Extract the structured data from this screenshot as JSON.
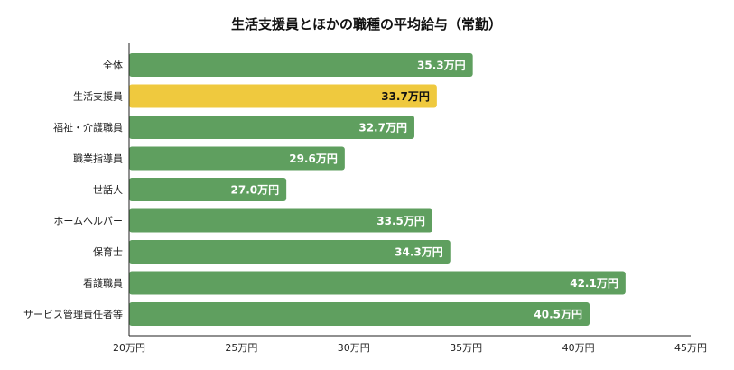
{
  "chart_data": {
    "type": "bar",
    "orientation": "horizontal",
    "title": "生活支援員とほかの職種の平均給与（常勤）",
    "xlabel": "",
    "ylabel": "",
    "xlim": [
      20,
      45
    ],
    "x_ticks": [
      20,
      25,
      30,
      35,
      40,
      45
    ],
    "x_tick_labels": [
      "20万円",
      "25万円",
      "30万円",
      "35万円",
      "40万円",
      "45万円"
    ],
    "grid": false,
    "legend": "none",
    "categories": [
      "全体",
      "生活支援員",
      "福祉・介護職員",
      "職業指導員",
      "世話人",
      "ホームヘルパー",
      "保育士",
      "看護職員",
      "サービス管理責任者等"
    ],
    "values": [
      35.3,
      33.7,
      32.7,
      29.6,
      27.0,
      33.5,
      34.3,
      42.1,
      40.5
    ],
    "data_labels": [
      "35.3万円",
      "33.7万円",
      "32.7万円",
      "29.6万円",
      "27.0万円",
      "33.5万円",
      "34.3万円",
      "42.1万円",
      "40.5万円"
    ],
    "highlight_index": 1,
    "colors": {
      "bar": "#5f9f5f",
      "highlight": "#efc93e",
      "label_on_bar": "#ffffff",
      "label_on_highlight": "#111111",
      "axis": "#222222"
    }
  }
}
